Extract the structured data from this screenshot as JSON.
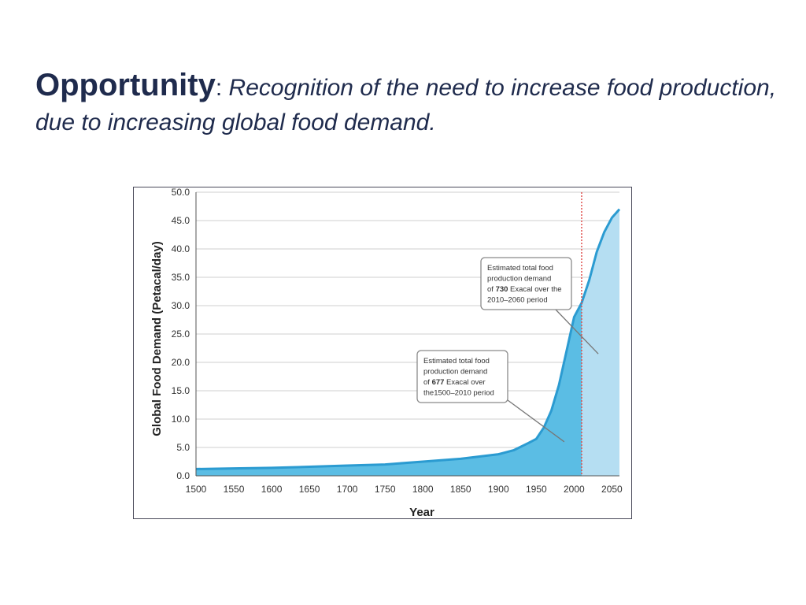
{
  "slide": {
    "title_lead": "Opportunity",
    "title_colon": ":",
    "title_sub": "Recognition of the need to increase food production, due to increasing global food demand."
  },
  "colors": {
    "title": "#1f2b4d",
    "area_historic": "#5bbde4",
    "area_projected": "#b5def2",
    "line": "#2b9bd1",
    "divider": "#e0514e",
    "grid": "#cfcfcf"
  },
  "chart_data": {
    "type": "area",
    "xlabel": "Year",
    "ylabel": "Global Food Demand (Petacal/day)",
    "xlim": [
      1500,
      2060
    ],
    "ylim": [
      0,
      50
    ],
    "x_ticks": [
      1500,
      1550,
      1600,
      1650,
      1700,
      1750,
      1800,
      1850,
      1900,
      1950,
      2000,
      2050
    ],
    "y_ticks": [
      "0.0",
      "5.0",
      "10.0",
      "15.0",
      "20.0",
      "25.0",
      "30.0",
      "35.0",
      "40.0",
      "45.0",
      "50.0"
    ],
    "grid": true,
    "divider_year": 2010,
    "series": [
      {
        "x": [
          1500,
          1550,
          1600,
          1650,
          1700,
          1750,
          1800,
          1850,
          1900,
          1920,
          1940,
          1950,
          1960,
          1970,
          1980,
          1990,
          2000,
          2010,
          2020,
          2030,
          2040,
          2050,
          2060
        ],
        "y": [
          1.2,
          1.3,
          1.4,
          1.6,
          1.8,
          2.0,
          2.5,
          3.0,
          3.8,
          4.5,
          5.8,
          6.5,
          8.5,
          11.5,
          16.0,
          22.0,
          28.0,
          30.5,
          34.5,
          39.5,
          43.0,
          45.5,
          47.0
        ]
      }
    ],
    "annotations": [
      {
        "id": "historic",
        "lines": [
          [
            {
              "t": "Estimated total food"
            }
          ],
          [
            {
              "t": "production demand"
            }
          ],
          [
            {
              "t": "of "
            },
            {
              "t": "677",
              "b": true
            },
            {
              "t": " Exacal over"
            }
          ],
          [
            {
              "t": "the1500–2010 period"
            }
          ]
        ],
        "pointer_year": 1987,
        "pointer_value": 6
      },
      {
        "id": "projected",
        "lines": [
          [
            {
              "t": "Estimated total food"
            }
          ],
          [
            {
              "t": "production demand"
            }
          ],
          [
            {
              "t": "of "
            },
            {
              "t": "730",
              "b": true
            },
            {
              "t": " Exacal over the"
            }
          ],
          [
            {
              "t": "2010–2060 period"
            }
          ]
        ],
        "pointer_year": 2032,
        "pointer_value": 21.5
      }
    ]
  }
}
